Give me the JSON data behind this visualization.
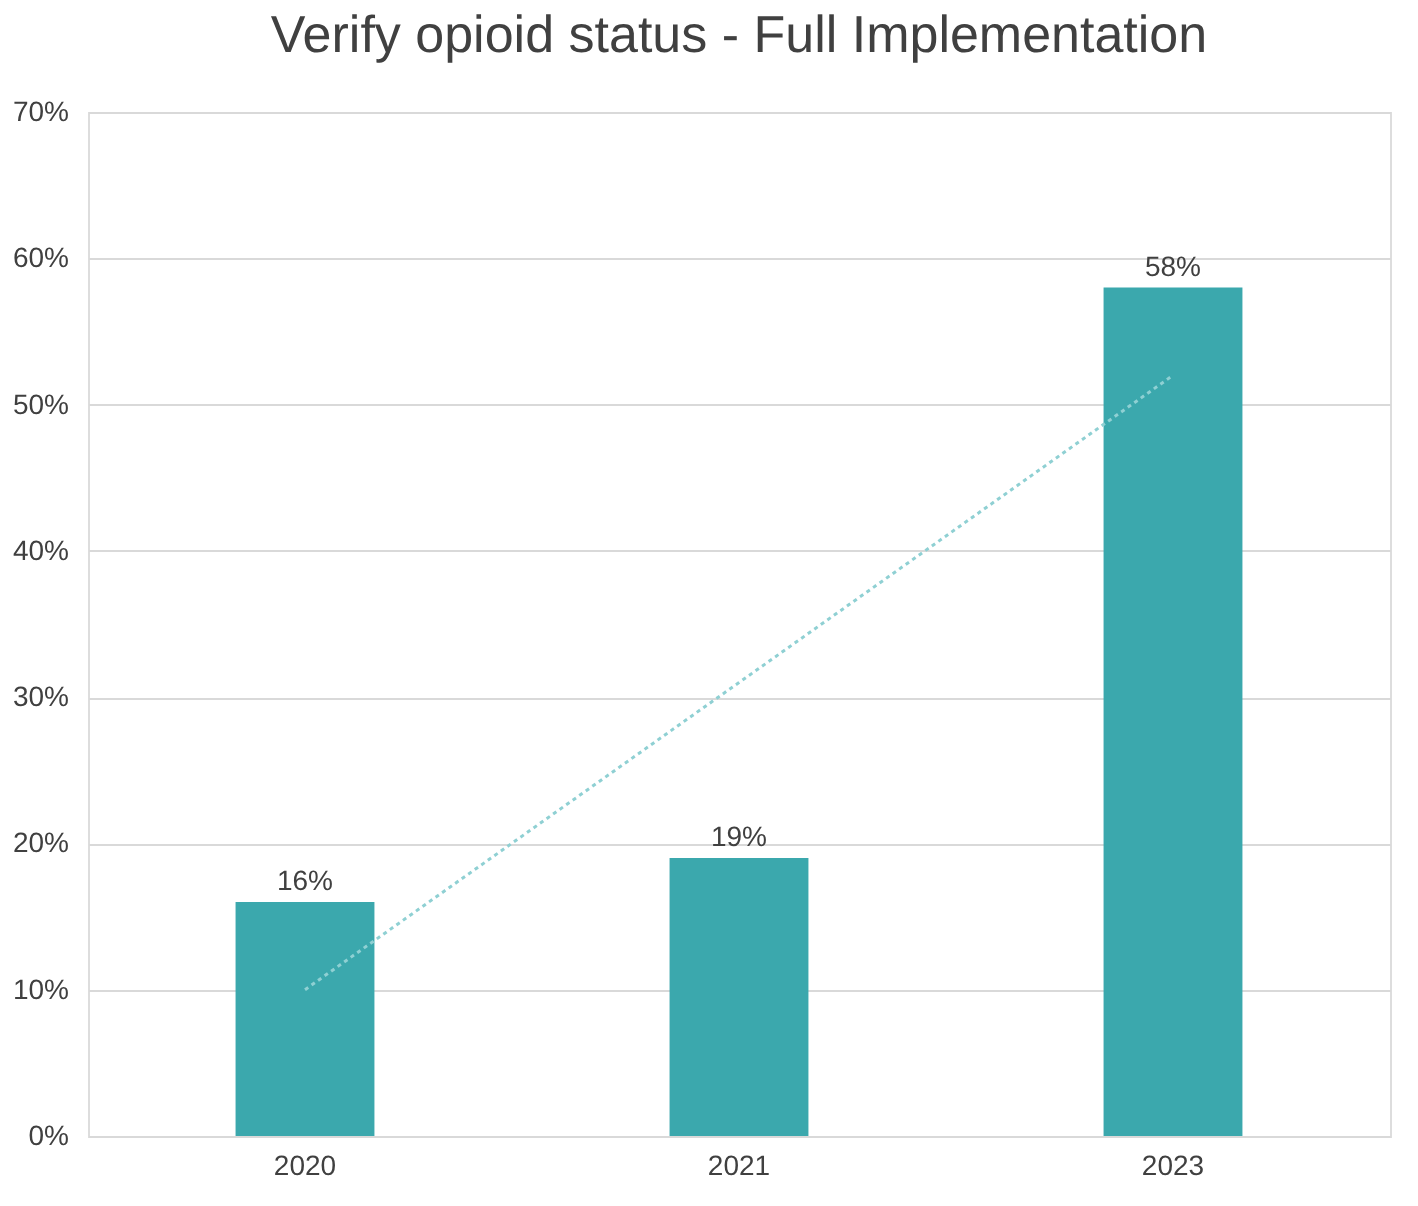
{
  "chart_data": {
    "type": "bar",
    "title": "Verify opioid status - Full Implementation",
    "categories": [
      "2020",
      "2021",
      "2023"
    ],
    "series": [
      {
        "color": "#3ba8ad",
        "values": [
          16,
          19,
          58
        ],
        "value_labels": [
          "16%",
          "19%",
          "58%"
        ]
      },
      {
        "type": "line",
        "color": "#8fd0d3",
        "values": [
          10,
          31,
          52
        ],
        "line_style": "dotted",
        "marker": "none"
      }
    ],
    "ylim": [
      0,
      70
    ],
    "yticks": [
      {
        "value": 0,
        "label": "0%"
      },
      {
        "value": 10,
        "label": "10%"
      },
      {
        "value": 20,
        "label": "20%"
      },
      {
        "value": 30,
        "label": "30%"
      },
      {
        "value": 40,
        "label": "40%"
      },
      {
        "value": 50,
        "label": "50%"
      },
      {
        "value": 60,
        "label": "60%"
      },
      {
        "value": 70,
        "label": "70%"
      }
    ],
    "grid": "y"
  }
}
